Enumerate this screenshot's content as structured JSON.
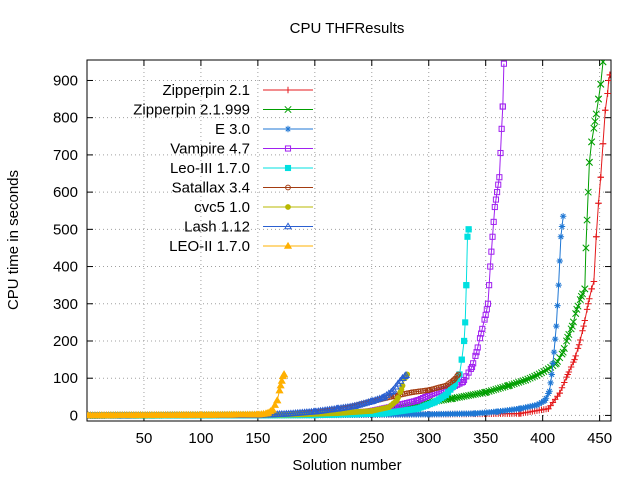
{
  "chart_data": {
    "type": "line",
    "title": "CPU THFResults",
    "xlabel": "Solution number",
    "ylabel": "CPU time in seconds",
    "xlim": [
      0,
      460
    ],
    "ylim": [
      -15,
      955
    ],
    "xticks": [
      50,
      100,
      150,
      200,
      250,
      300,
      350,
      400,
      450
    ],
    "yticks": [
      0,
      100,
      200,
      300,
      400,
      500,
      600,
      700,
      800,
      900
    ],
    "grid": true,
    "legend_position": "top-left",
    "series": [
      {
        "name": "Zipperpin 2.1",
        "color": "#e41a1c",
        "marker": "plus",
        "points": [
          [
            1,
            0
          ],
          [
            100,
            1
          ],
          [
            200,
            2
          ],
          [
            300,
            3
          ],
          [
            380,
            5
          ],
          [
            405,
            18
          ],
          [
            415,
            60
          ],
          [
            422,
            110
          ],
          [
            428,
            150
          ],
          [
            432,
            190
          ],
          [
            436,
            240
          ],
          [
            440,
            300
          ],
          [
            443,
            340
          ],
          [
            445,
            360
          ],
          [
            447,
            480
          ],
          [
            449,
            570
          ],
          [
            451,
            640
          ],
          [
            453,
            730
          ],
          [
            455,
            820
          ],
          [
            457,
            865
          ],
          [
            458,
            900
          ],
          [
            459,
            915
          ]
        ]
      },
      {
        "name": "Zipperpin 2.1.999",
        "color": "#009e00",
        "marker": "x",
        "points": [
          [
            1,
            0
          ],
          [
            150,
            1
          ],
          [
            200,
            2
          ],
          [
            250,
            8
          ],
          [
            290,
            30
          ],
          [
            320,
            45
          ],
          [
            350,
            62
          ],
          [
            370,
            80
          ],
          [
            385,
            95
          ],
          [
            395,
            108
          ],
          [
            405,
            125
          ],
          [
            412,
            140
          ],
          [
            418,
            170
          ],
          [
            422,
            210
          ],
          [
            426,
            240
          ],
          [
            430,
            285
          ],
          [
            434,
            320
          ],
          [
            437,
            340
          ],
          [
            438,
            450
          ],
          [
            440,
            600
          ],
          [
            441,
            680
          ],
          [
            443,
            735
          ],
          [
            446,
            790
          ],
          [
            449,
            850
          ],
          [
            451,
            890
          ],
          [
            453,
            950
          ]
        ]
      },
      {
        "name": "E 3.0",
        "color": "#1f77d4",
        "marker": "star",
        "points": [
          [
            1,
            0
          ],
          [
            200,
            1
          ],
          [
            300,
            3
          ],
          [
            340,
            5
          ],
          [
            360,
            10
          ],
          [
            380,
            18
          ],
          [
            395,
            28
          ],
          [
            402,
            40
          ],
          [
            406,
            65
          ],
          [
            408,
            110
          ],
          [
            410,
            170
          ],
          [
            412,
            240
          ],
          [
            414,
            350
          ],
          [
            416,
            480
          ],
          [
            418,
            535
          ]
        ]
      },
      {
        "name": "Vampire 4.7",
        "color": "#a020f0",
        "marker": "square",
        "points": [
          [
            1,
            0
          ],
          [
            150,
            1
          ],
          [
            200,
            2
          ],
          [
            230,
            5
          ],
          [
            250,
            12
          ],
          [
            270,
            25
          ],
          [
            290,
            40
          ],
          [
            305,
            60
          ],
          [
            320,
            75
          ],
          [
            330,
            90
          ],
          [
            338,
            130
          ],
          [
            342,
            170
          ],
          [
            346,
            220
          ],
          [
            350,
            270
          ],
          [
            352,
            300
          ],
          [
            354,
            400
          ],
          [
            356,
            480
          ],
          [
            358,
            560
          ],
          [
            360,
            600
          ],
          [
            362,
            640
          ],
          [
            364,
            770
          ],
          [
            365,
            830
          ],
          [
            366,
            945
          ]
        ]
      },
      {
        "name": "Leo-III 1.7.0",
        "color": "#00e0e0",
        "marker": "filled-square",
        "points": [
          [
            1,
            0
          ],
          [
            200,
            1
          ],
          [
            260,
            5
          ],
          [
            290,
            18
          ],
          [
            305,
            35
          ],
          [
            315,
            55
          ],
          [
            322,
            80
          ],
          [
            327,
            110
          ],
          [
            329,
            150
          ],
          [
            331,
            200
          ],
          [
            332,
            250
          ],
          [
            333,
            350
          ],
          [
            334,
            480
          ],
          [
            335,
            500
          ]
        ]
      },
      {
        "name": "Satallax 3.4",
        "color": "#a33b10",
        "marker": "circle",
        "points": [
          [
            1,
            0
          ],
          [
            150,
            1
          ],
          [
            180,
            4
          ],
          [
            210,
            12
          ],
          [
            230,
            22
          ],
          [
            250,
            38
          ],
          [
            270,
            52
          ],
          [
            285,
            62
          ],
          [
            300,
            68
          ],
          [
            315,
            80
          ],
          [
            322,
            95
          ],
          [
            326,
            110
          ]
        ]
      },
      {
        "name": "cvc5 1.0",
        "color": "#b8b800",
        "marker": "filled-circle",
        "points": [
          [
            1,
            0
          ],
          [
            150,
            1
          ],
          [
            190,
            3
          ],
          [
            220,
            6
          ],
          [
            250,
            12
          ],
          [
            265,
            22
          ],
          [
            272,
            40
          ],
          [
            276,
            70
          ],
          [
            279,
            100
          ],
          [
            281,
            110
          ]
        ]
      },
      {
        "name": "Lash 1.12",
        "color": "#2a5fd0",
        "marker": "triangle",
        "points": [
          [
            1,
            0
          ],
          [
            150,
            1
          ],
          [
            175,
            4
          ],
          [
            200,
            10
          ],
          [
            220,
            18
          ],
          [
            235,
            25
          ],
          [
            250,
            38
          ],
          [
            260,
            48
          ],
          [
            268,
            65
          ],
          [
            273,
            85
          ],
          [
            277,
            100
          ],
          [
            280,
            108
          ]
        ]
      },
      {
        "name": "LEO-II 1.7.0",
        "color": "#ffb000",
        "marker": "filled-triangle",
        "points": [
          [
            1,
            0
          ],
          [
            100,
            1
          ],
          [
            150,
            2
          ],
          [
            158,
            5
          ],
          [
            163,
            15
          ],
          [
            167,
            40
          ],
          [
            170,
            80
          ],
          [
            172,
            105
          ],
          [
            173,
            110
          ]
        ]
      }
    ]
  }
}
